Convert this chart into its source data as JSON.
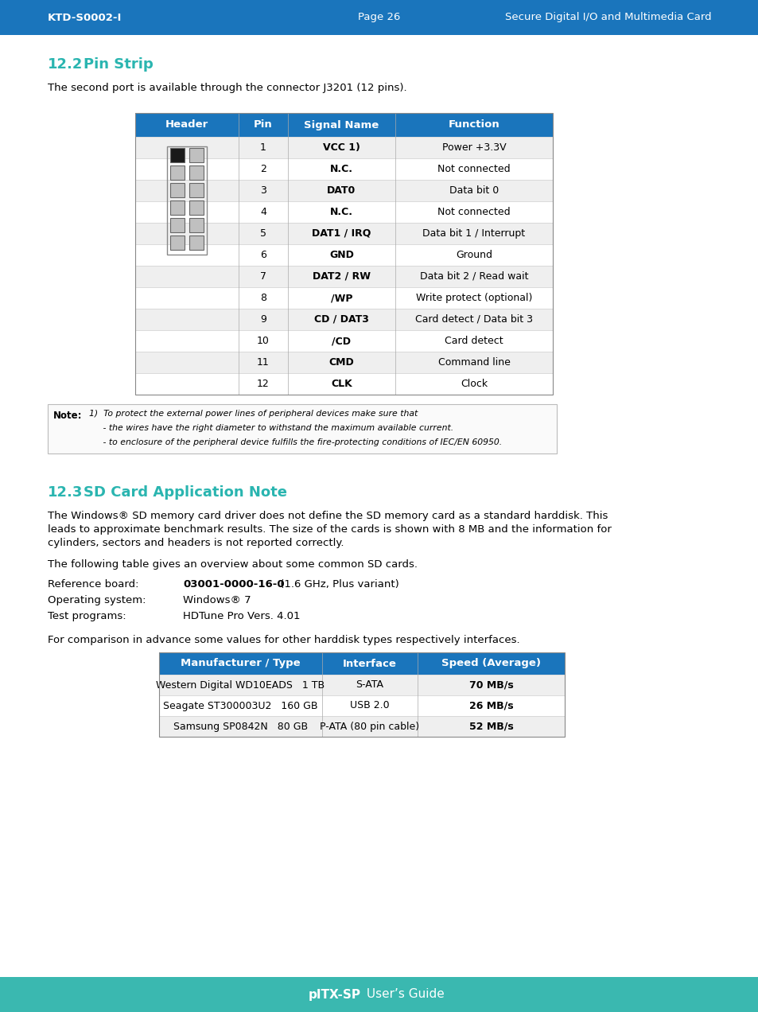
{
  "top_bar_color": "#1a75bc",
  "bottom_bar_color": "#3ab8b0",
  "top_bar_text_left": "KTD-S0002-I",
  "top_bar_text_center": "Page 26",
  "top_bar_text_right": "Secure Digital I/O and Multimedia Card",
  "bottom_bar_text_bold": "pITX-SP",
  "bottom_bar_text_normal": " User’s Guide",
  "section_title_color": "#2ab5b0",
  "section_12_2_num": "12.2",
  "section_12_2_title": "   Pin Strip",
  "section_12_3_num": "12.3",
  "section_12_3_title": "   SD Card Application Note",
  "intro_text_12_2": "The second port is available through the connector J3201 (12 pins).",
  "table1_headers": [
    "Header",
    "Pin",
    "Signal Name",
    "Function"
  ],
  "table1_signals": [
    "VCC 1)",
    "N.C.",
    "DAT0",
    "N.C.",
    "DAT1 / IRQ",
    "GND",
    "DAT2 / RW",
    "/WP",
    "CD / DAT3",
    "/CD",
    "CMD",
    "CLK"
  ],
  "table1_functions": [
    "Power +3.3V",
    "Not connected",
    "Data bit 0",
    "Not connected",
    "Data bit 1 / Interrupt",
    "Ground",
    "Data bit 2 / Read wait",
    "Write protect (optional)",
    "Card detect / Data bit 3",
    "Card detect",
    "Command line",
    "Clock"
  ],
  "note_lines": [
    "1)  To protect the external power lines of peripheral devices make sure that",
    "     - the wires have the right diameter to withstand the maximum available current.",
    "     - to enclosure of the peripheral device fulfills the fire-protecting conditions of IEC/EN 60950."
  ],
  "p1_lines": [
    "The Windows® SD memory card driver does not define the SD memory card as a standard harddisk. This",
    "leads to approximate benchmark results. The size of the cards is shown with 8 MB and the information for",
    "cylinders, sectors and headers is not reported correctly."
  ],
  "p2_line": "The following table gives an overview about some common SD cards.",
  "ref_board_label": "Reference board:",
  "ref_board_bold": "03001-0000-16-0",
  "ref_board_normal": " (1.6 GHz, Plus variant)",
  "os_label": "Operating system:",
  "os_val": "Windows® 7",
  "test_label": "Test programs:",
  "test_val": "HDTune Pro Vers. 4.01",
  "comparison_text": "For comparison in advance some values for other harddisk types respectively interfaces.",
  "table2_headers": [
    "Manufacturer / Type",
    "Interface",
    "Speed (Average)"
  ],
  "table2_rows": [
    [
      "Western Digital WD10EADS   1 TB",
      "S-ATA",
      "70 MB/s"
    ],
    [
      "Seagate ST300003U2   160 GB",
      "USB 2.0",
      "26 MB/s"
    ],
    [
      "Samsung SP0842N   80 GB",
      "P-ATA (80 pin cable)",
      "52 MB/s"
    ]
  ],
  "row_alt_color": "#efefef",
  "row_white": "#ffffff",
  "table_header_bg": "#1a75bc",
  "page_bg": "#ffffff"
}
